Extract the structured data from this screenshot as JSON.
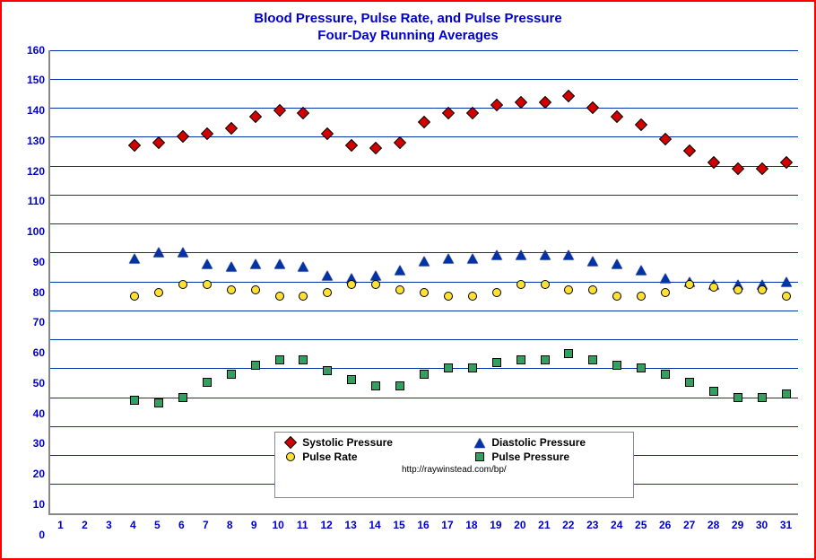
{
  "title_line1": "Blood Pressure, Pulse Rate, and Pulse Pressure",
  "title_line2": "Four-Day Running Averages",
  "chart": {
    "type": "scatter",
    "background_color": "#ffffff",
    "outer_border_color": "#ff0000",
    "axis_color": "#888888",
    "grid_color": "#0033aa",
    "tick_label_color": "#0000cc",
    "title_color": "#0000cc",
    "title_fontsize_pt": 15,
    "tick_fontsize_pt": 12,
    "legend_fontsize_pt": 12,
    "xlim": [
      1,
      31
    ],
    "ylim": [
      0,
      160
    ],
    "ytick_step": 10,
    "xticks": [
      1,
      2,
      3,
      4,
      5,
      6,
      7,
      8,
      9,
      10,
      11,
      12,
      13,
      14,
      15,
      16,
      17,
      18,
      19,
      20,
      21,
      22,
      23,
      24,
      25,
      26,
      27,
      28,
      29,
      30,
      31
    ],
    "yticks": [
      0,
      10,
      20,
      30,
      40,
      50,
      60,
      70,
      80,
      90,
      100,
      110,
      120,
      130,
      140,
      150,
      160
    ],
    "x_categories": [
      1,
      2,
      3,
      4,
      5,
      6,
      7,
      8,
      9,
      10,
      11,
      12,
      13,
      14,
      15,
      16,
      17,
      18,
      19,
      20,
      21,
      22,
      23,
      24,
      25,
      26,
      27,
      28,
      29,
      30,
      31
    ],
    "series": [
      {
        "name": "Systolic Pressure",
        "marker": "diamond",
        "color": "#d40000",
        "border_color": "#000000",
        "marker_size_px": 10,
        "x": [
          4,
          5,
          6,
          7,
          8,
          9,
          10,
          11,
          12,
          13,
          14,
          15,
          16,
          17,
          18,
          19,
          20,
          21,
          22,
          23,
          24,
          25,
          26,
          27,
          28,
          29,
          30,
          31
        ],
        "values": [
          127,
          128,
          130,
          131,
          133,
          137,
          139,
          138,
          131,
          127,
          126,
          128,
          135,
          138,
          138,
          141,
          142,
          142,
          144,
          140,
          137,
          134,
          129,
          125,
          121,
          119,
          119,
          121
        ]
      },
      {
        "name": "Diastolic Pressure",
        "marker": "triangle",
        "color": "#0033aa",
        "border_color": "#000000",
        "marker_size_px": 11,
        "x": [
          4,
          5,
          6,
          7,
          8,
          9,
          10,
          11,
          12,
          13,
          14,
          15,
          16,
          17,
          18,
          19,
          20,
          21,
          22,
          23,
          24,
          25,
          26,
          27,
          28,
          29,
          30,
          31
        ],
        "values": [
          88,
          90,
          90,
          86,
          85,
          86,
          86,
          85,
          82,
          81,
          82,
          84,
          87,
          88,
          88,
          89,
          89,
          89,
          89,
          87,
          86,
          84,
          81,
          80,
          79,
          79,
          79,
          80
        ]
      },
      {
        "name": "Pulse Rate",
        "marker": "circle",
        "color": "#ffe033",
        "border_color": "#000000",
        "marker_size_px": 10,
        "x": [
          4,
          5,
          6,
          7,
          8,
          9,
          10,
          11,
          12,
          13,
          14,
          15,
          16,
          17,
          18,
          19,
          20,
          21,
          22,
          23,
          24,
          25,
          26,
          27,
          28,
          29,
          30,
          31
        ],
        "values": [
          75,
          76,
          79,
          79,
          77,
          77,
          75,
          75,
          76,
          79,
          79,
          77,
          76,
          75,
          75,
          76,
          79,
          79,
          77,
          77,
          75,
          75,
          76,
          79,
          78,
          77,
          77,
          75
        ]
      },
      {
        "name": "Pulse Pressure",
        "marker": "square",
        "color": "#33a060",
        "border_color": "#000000",
        "marker_size_px": 10,
        "x": [
          4,
          5,
          6,
          7,
          8,
          9,
          10,
          11,
          12,
          13,
          14,
          15,
          16,
          17,
          18,
          19,
          20,
          21,
          22,
          23,
          24,
          25,
          26,
          27,
          28,
          29,
          30,
          31
        ],
        "values": [
          39,
          38,
          40,
          45,
          48,
          51,
          53,
          53,
          49,
          46,
          44,
          44,
          48,
          50,
          50,
          52,
          53,
          53,
          55,
          53,
          51,
          50,
          48,
          45,
          42,
          40,
          40,
          41
        ]
      }
    ],
    "legend": {
      "position": "bottom-inside",
      "border_color": "#888888",
      "background_color": "#ffffff",
      "url_text": "http://raywinstead.com/bp/",
      "columns": 2,
      "left_pct": 30,
      "width_pct": 48,
      "bottom_y_value": 5,
      "top_y_value": 28,
      "items": [
        {
          "series_index": 0,
          "label": "Systolic Pressure"
        },
        {
          "series_index": 1,
          "label": "Diastolic Pressure"
        },
        {
          "series_index": 2,
          "label": "Pulse Rate"
        },
        {
          "series_index": 3,
          "label": "Pulse Pressure"
        }
      ]
    }
  }
}
